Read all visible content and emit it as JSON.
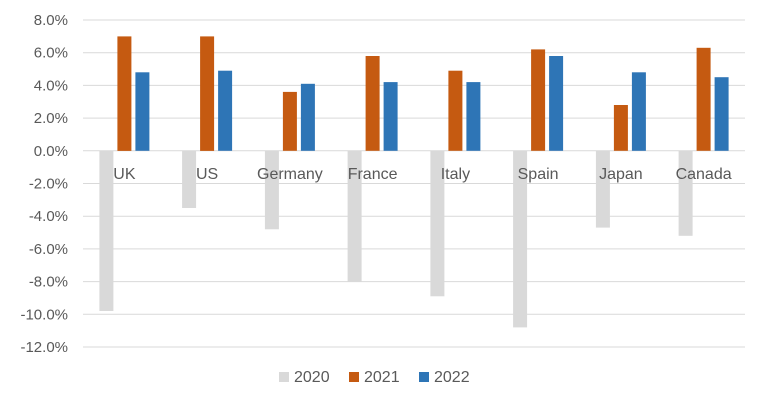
{
  "chart_data": {
    "type": "bar",
    "categories": [
      "UK",
      "US",
      "Germany",
      "France",
      "Italy",
      "Spain",
      "Japan",
      "Canada"
    ],
    "series": [
      {
        "name": "2020",
        "color": "#d9d9d9",
        "values": [
          -9.8,
          -3.5,
          -4.8,
          -8.0,
          -8.9,
          -10.8,
          -4.7,
          -5.2
        ]
      },
      {
        "name": "2021",
        "color": "#c55a11",
        "values": [
          7.0,
          7.0,
          3.6,
          5.8,
          4.9,
          6.2,
          2.8,
          6.3
        ]
      },
      {
        "name": "2022",
        "color": "#2e75b6",
        "values": [
          4.8,
          4.9,
          4.1,
          4.2,
          4.2,
          5.8,
          4.8,
          4.5
        ]
      }
    ],
    "y_ticks": [
      "8.0%",
      "6.0%",
      "4.0%",
      "2.0%",
      "0.0%",
      "-2.0%",
      "-4.0%",
      "-6.0%",
      "-8.0%",
      "-10.0%",
      "-12.0%"
    ],
    "ylim": [
      -12,
      8
    ],
    "grid": true,
    "legend_position": "bottom",
    "title": "",
    "xlabel": "",
    "ylabel": ""
  }
}
